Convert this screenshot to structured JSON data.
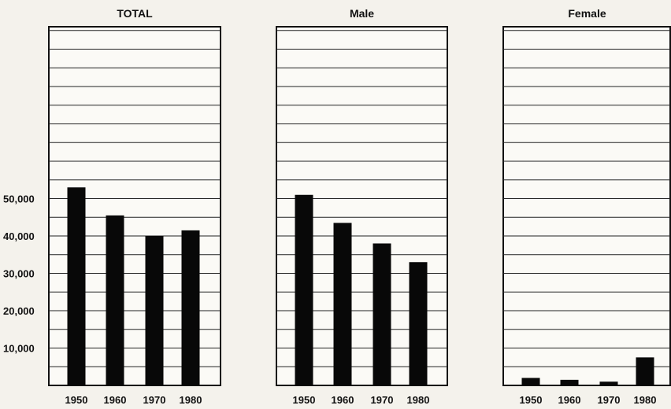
{
  "chart_data": [
    {
      "type": "bar",
      "title": "TOTAL",
      "categories": [
        "1950",
        "1960",
        "1970",
        "1980"
      ],
      "values": [
        53000,
        45500,
        40000,
        41500
      ],
      "ylim": [
        0,
        96000
      ],
      "yticks": [
        10000,
        20000,
        30000,
        40000,
        50000
      ],
      "ytick_labels": [
        "10,000",
        "20,000",
        "30,000",
        "40,000",
        "50,000"
      ],
      "xlabel": "",
      "ylabel": "",
      "grid": true
    },
    {
      "type": "bar",
      "title": "Male",
      "categories": [
        "1950",
        "1960",
        "1970",
        "1980"
      ],
      "values": [
        51000,
        43500,
        38000,
        33000
      ],
      "ylim": [
        0,
        96000
      ],
      "xlabel": "",
      "ylabel": "",
      "grid": true
    },
    {
      "type": "bar",
      "title": "Female",
      "categories": [
        "1950",
        "1960",
        "1970",
        "1980"
      ],
      "values": [
        2000,
        1500,
        1000,
        7500
      ],
      "ylim": [
        0,
        96000
      ],
      "xlabel": "",
      "ylabel": "",
      "grid": true
    }
  ]
}
